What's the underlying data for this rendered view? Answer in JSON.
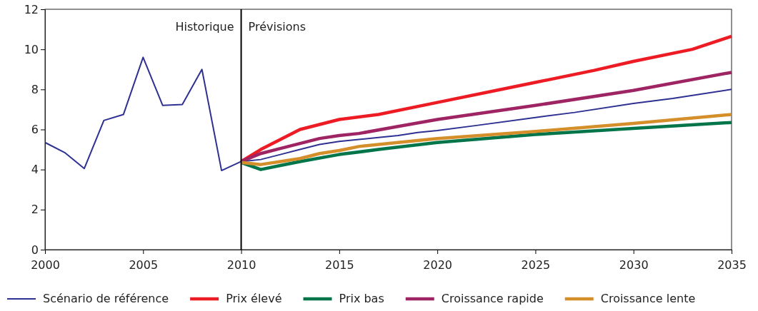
{
  "chart_data": {
    "type": "line",
    "xlim": [
      2000,
      2035
    ],
    "xticks": [
      2000,
      2005,
      2010,
      2015,
      2020,
      2025,
      2030,
      2035
    ],
    "ylim": [
      0,
      12
    ],
    "yticks": [
      0,
      2,
      4,
      6,
      8,
      10,
      12
    ],
    "grid": false,
    "legend": "bottom",
    "line_style": "solid",
    "marker": "none",
    "ref_lines": [
      {
        "axis": "x",
        "value": 2010,
        "color": "#000000"
      }
    ],
    "annotations": [
      "Historique",
      "Prévisions"
    ],
    "series": [
      {
        "name": "Scénario de référence",
        "color": "#2e3192",
        "x": [
          2000,
          2001,
          2002,
          2003,
          2004,
          2005,
          2006,
          2007,
          2008,
          2009,
          2010,
          2011,
          2012,
          2013,
          2014,
          2015,
          2016,
          2017,
          2018,
          2019,
          2020,
          2022,
          2025,
          2027,
          2030,
          2032,
          2035
        ],
        "values": [
          5.35,
          4.85,
          4.05,
          6.45,
          6.75,
          9.6,
          7.2,
          7.25,
          9.0,
          3.95,
          4.4,
          4.5,
          4.75,
          5.0,
          5.25,
          5.4,
          5.5,
          5.6,
          5.7,
          5.85,
          5.95,
          6.2,
          6.6,
          6.85,
          7.3,
          7.55,
          8.0
        ]
      },
      {
        "name": "Prix élevé",
        "color": "#ed1c24",
        "x": [
          2010,
          2011,
          2012,
          2013,
          2014,
          2015,
          2017,
          2020,
          2023,
          2025,
          2028,
          2030,
          2033,
          2035
        ],
        "values": [
          4.4,
          5.0,
          5.5,
          6.0,
          6.25,
          6.5,
          6.75,
          7.35,
          7.95,
          8.35,
          8.95,
          9.4,
          10.0,
          10.65
        ]
      },
      {
        "name": "Prix bas",
        "color": "#00754a",
        "x": [
          2010,
          2011,
          2012,
          2013,
          2015,
          2017,
          2020,
          2025,
          2030,
          2035
        ],
        "values": [
          4.35,
          4.0,
          4.2,
          4.4,
          4.75,
          5.0,
          5.35,
          5.75,
          6.05,
          6.35
        ]
      },
      {
        "name": "Croissance rapide",
        "color": "#9e2463",
        "x": [
          2010,
          2011,
          2012,
          2013,
          2014,
          2015,
          2016,
          2018,
          2020,
          2025,
          2030,
          2035
        ],
        "values": [
          4.4,
          4.8,
          5.05,
          5.3,
          5.55,
          5.7,
          5.8,
          6.15,
          6.5,
          7.2,
          7.95,
          8.85
        ]
      },
      {
        "name": "Croissance lente",
        "color": "#d48f2b",
        "x": [
          2010,
          2011,
          2012,
          2013,
          2014,
          2015,
          2016,
          2018,
          2020,
          2025,
          2030,
          2035
        ],
        "values": [
          4.35,
          4.25,
          4.4,
          4.55,
          4.8,
          4.95,
          5.15,
          5.35,
          5.55,
          5.9,
          6.3,
          6.75
        ]
      }
    ]
  }
}
